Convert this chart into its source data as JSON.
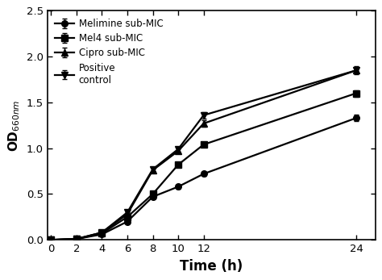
{
  "x": [
    0,
    2,
    4,
    6,
    8,
    10,
    12,
    24
  ],
  "series": {
    "Melimine sub-MIC": {
      "y": [
        0.0,
        0.01,
        0.06,
        0.2,
        0.47,
        0.58,
        0.72,
        1.33
      ],
      "yerr": [
        0.005,
        0.005,
        0.008,
        0.015,
        0.018,
        0.022,
        0.025,
        0.035
      ],
      "marker": "o",
      "color": "#000000"
    },
    "Mel4 sub-MIC": {
      "y": [
        0.0,
        0.01,
        0.07,
        0.25,
        0.5,
        0.82,
        1.04,
        1.6
      ],
      "yerr": [
        0.005,
        0.005,
        0.008,
        0.015,
        0.018,
        0.022,
        0.025,
        0.035
      ],
      "marker": "s",
      "color": "#000000"
    },
    "Cipro sub-MIC": {
      "y": [
        0.0,
        0.01,
        0.08,
        0.28,
        0.76,
        0.97,
        1.27,
        1.85
      ],
      "yerr": [
        0.005,
        0.005,
        0.008,
        0.018,
        0.022,
        0.028,
        0.035,
        0.038
      ],
      "marker": "^",
      "color": "#000000"
    },
    "Positive control": {
      "y": [
        0.0,
        0.01,
        0.08,
        0.3,
        0.77,
        0.99,
        1.36,
        1.85
      ],
      "yerr": [
        0.005,
        0.005,
        0.008,
        0.018,
        0.022,
        0.028,
        0.035,
        0.045
      ],
      "marker": "v",
      "color": "#000000"
    }
  },
  "xlabel": "Time (h)",
  "ylabel": "OD",
  "ylabel_sub": "660nm",
  "xlim": [
    -0.3,
    25.5
  ],
  "ylim": [
    0.0,
    2.5
  ],
  "xticks": [
    0,
    2,
    4,
    6,
    8,
    10,
    12,
    24
  ],
  "yticks": [
    0.0,
    0.5,
    1.0,
    1.5,
    2.0,
    2.5
  ],
  "legend_labels": [
    "Melimine sub-MIC",
    "Mel4 sub-MIC",
    "Cipro sub-MIC",
    "Positive\ncontrol"
  ],
  "background_color": "#ffffff",
  "linewidth": 1.6,
  "markersize": 5.5
}
